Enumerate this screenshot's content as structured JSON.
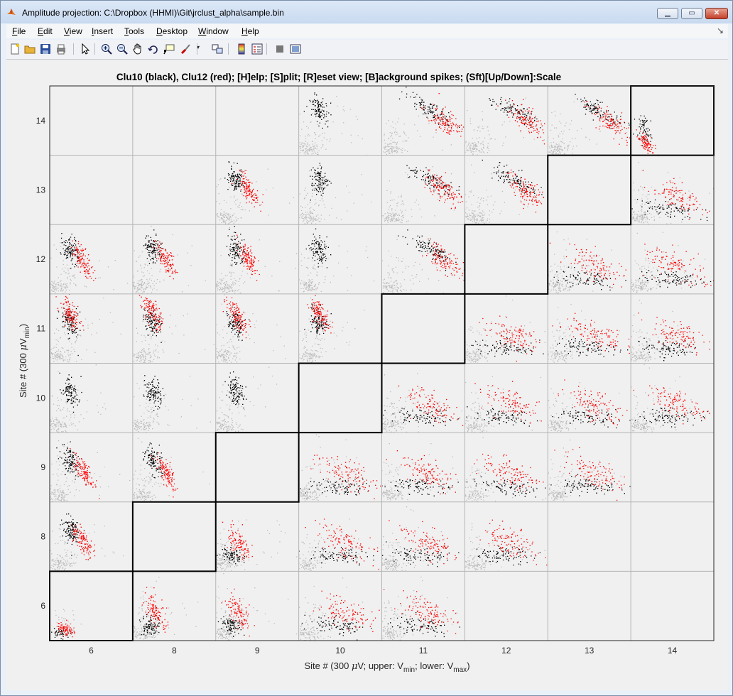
{
  "window": {
    "title": "Amplitude projection: C:\\Dropbox (HHMI)\\Git\\jrclust_alpha\\sample.bin",
    "controls": [
      "minimize",
      "maximize",
      "close"
    ]
  },
  "menu": [
    {
      "label": "File",
      "u": "F",
      "rest": "ile"
    },
    {
      "label": "Edit",
      "u": "E",
      "rest": "dit"
    },
    {
      "label": "View",
      "u": "V",
      "rest": "iew"
    },
    {
      "label": "Insert",
      "u": "I",
      "rest": "nsert"
    },
    {
      "label": "Tools",
      "u": "T",
      "rest": "ools"
    },
    {
      "label": "Desktop",
      "u": "D",
      "rest": "esktop"
    },
    {
      "label": "Window",
      "u": "W",
      "rest": "indow"
    },
    {
      "label": "Help",
      "u": "H",
      "rest": "elp"
    }
  ],
  "toolbar": [
    "new-figure-icon",
    "open-file-icon",
    "save-icon",
    "print-icon",
    "pointer-icon",
    "zoom-in-icon",
    "zoom-out-icon",
    "pan-icon",
    "rotate-icon",
    "data-cursor-icon",
    "brush-icon",
    "link-plot-icon",
    "colorbar-icon",
    "legend-icon",
    "hide-plot-tools-icon",
    "show-plot-tools-icon"
  ],
  "plot": {
    "title": "Clu10 (black), Clu12 (red); [H]elp; [S]plit; [R]eset view; [B]ackground spikes; (Sft)[Up/Down]:Scale",
    "xlabel": "Site # (300 μV; upper: Vmin; lower: Vmax)",
    "xlabel_parts": {
      "pre": "Site # (300 ",
      "mu": "μ",
      "mid1": "V; upper: V",
      "sub1": "min",
      "mid2": "; lower: V",
      "sub2": "max",
      "post": ")"
    },
    "ylabel_parts": {
      "pre": "Site # (300 ",
      "mu": "μ",
      "mid": "V",
      "sub": "min",
      "post": ")"
    },
    "x_ticks": [
      "6",
      "8",
      "9",
      "10",
      "11",
      "12",
      "13",
      "14"
    ],
    "y_ticks": [
      "14",
      "13",
      "12",
      "11",
      "10",
      "9",
      "8",
      "6"
    ],
    "colors": {
      "clu10": "#000000",
      "clu12": "#ff0000",
      "background": "#bdbdbd",
      "grid": "#b4b4b4",
      "highlight": "#000000"
    }
  }
}
